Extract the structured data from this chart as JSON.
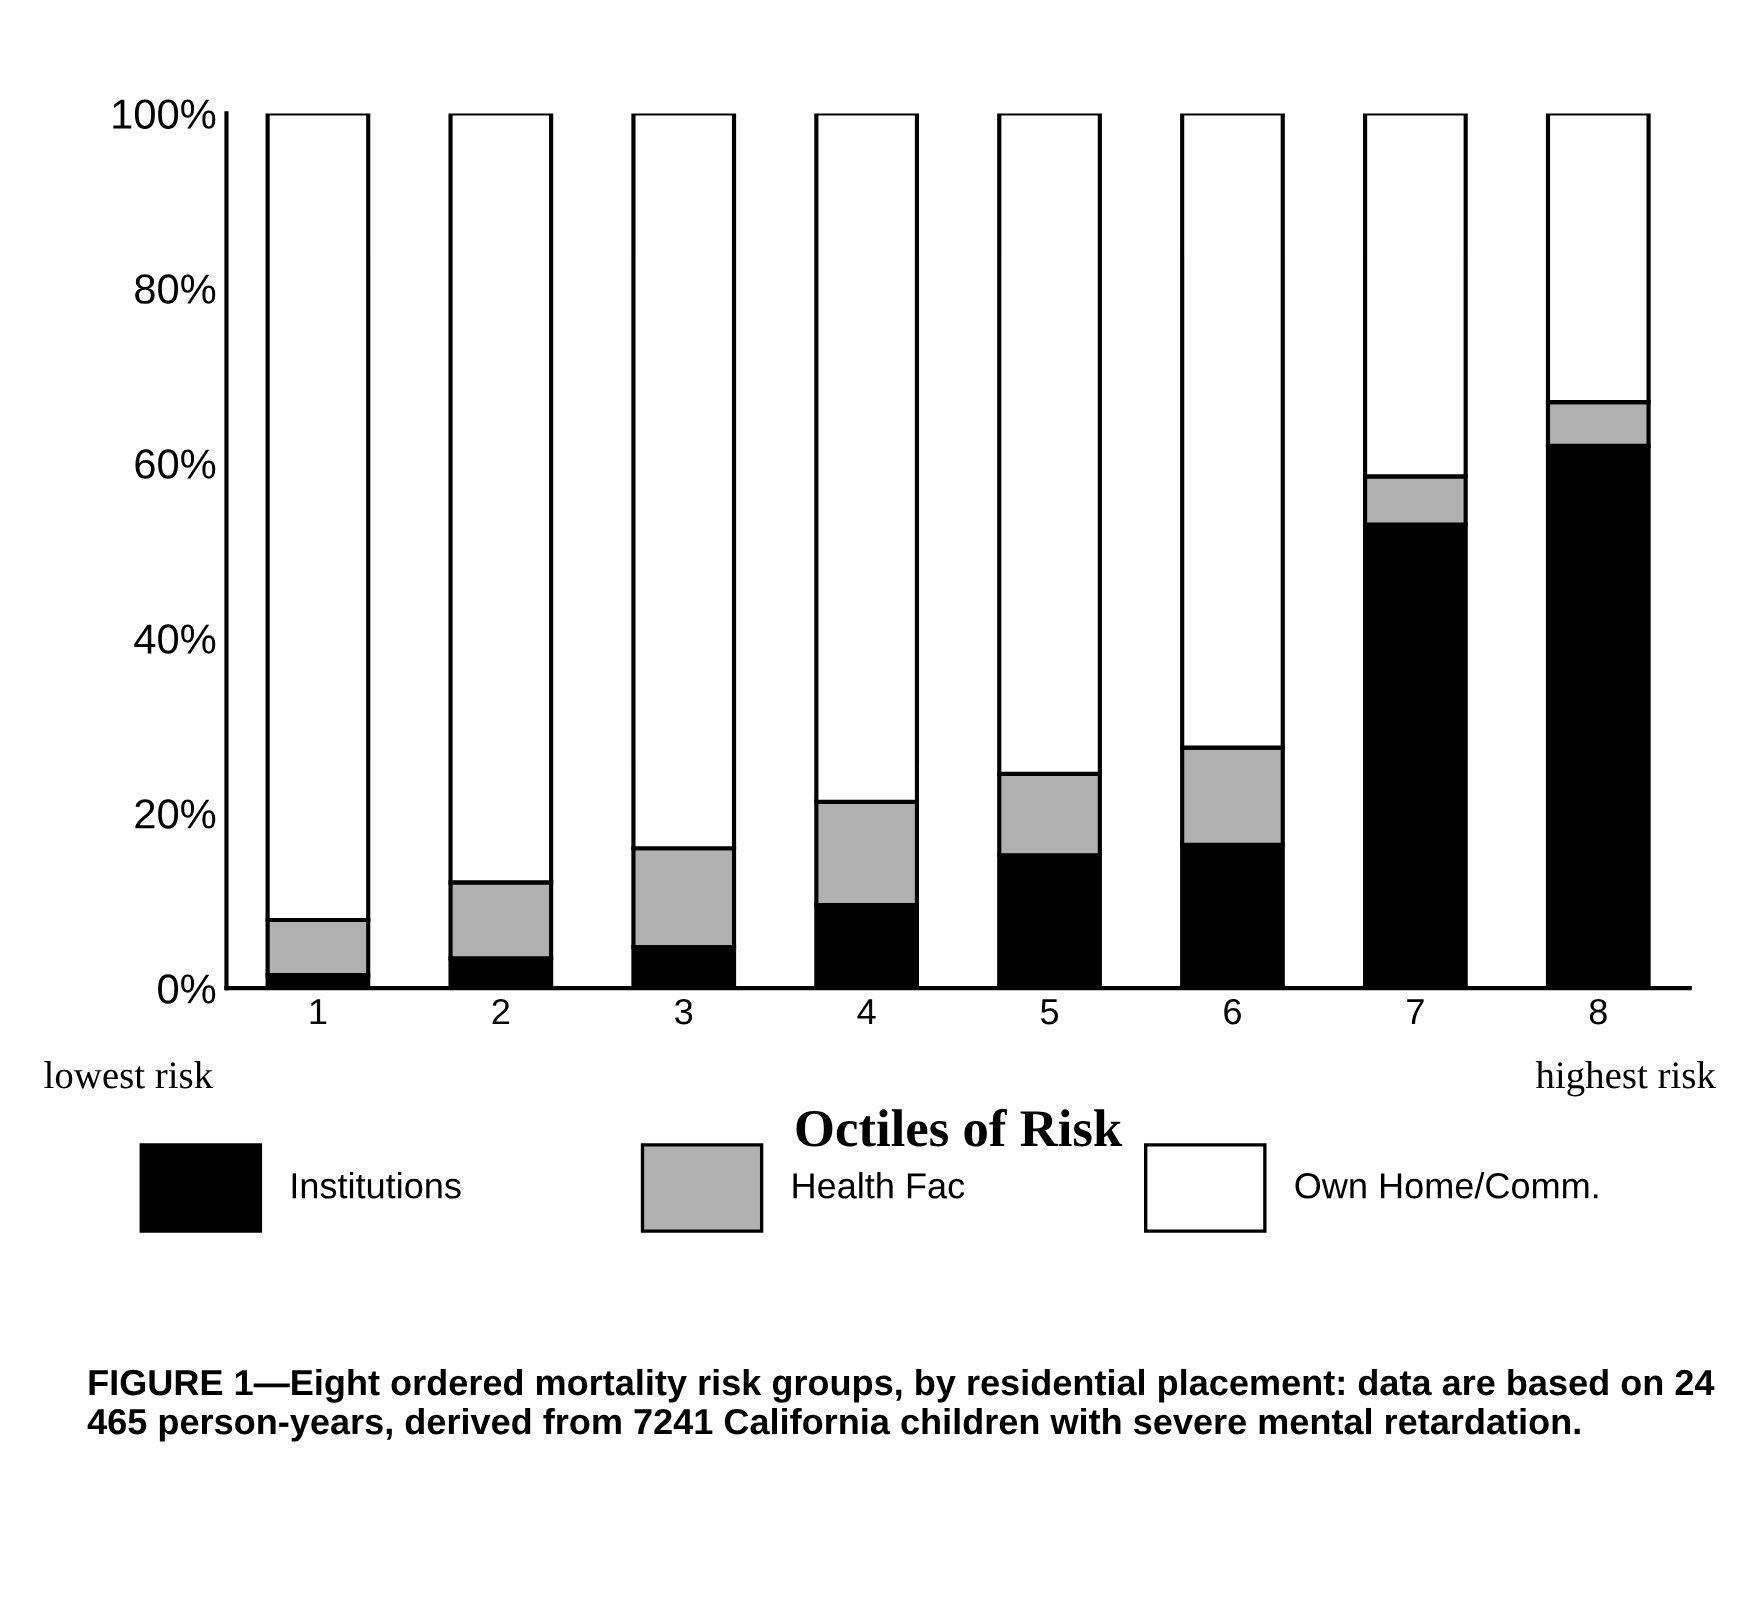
{
  "chart_data": {
    "type": "bar",
    "stacked": true,
    "xlabel": "Octiles of Risk",
    "categories": [
      "1",
      "2",
      "3",
      "4",
      "5",
      "6",
      "7",
      "8"
    ],
    "series": [
      {
        "name": "Institutions",
        "color": "#000000",
        "values": [
          1.5,
          3.4,
          4.7,
          9.5,
          15.2,
          16.4,
          53,
          62
        ]
      },
      {
        "name": "Health Fac",
        "color": "#b0b0b0",
        "values": [
          6.3,
          8.7,
          11.3,
          11.8,
          9.3,
          11.1,
          5.5,
          5
        ]
      },
      {
        "name": "Own Home/Comm.",
        "color": "#ffffff",
        "values": [
          92.2,
          87.9,
          84,
          78.7,
          75.5,
          72.5,
          41.5,
          33
        ]
      }
    ],
    "ylim": [
      0,
      100
    ],
    "yticks": [
      {
        "value": 0,
        "label": "0%"
      },
      {
        "value": 20,
        "label": "20%"
      },
      {
        "value": 40,
        "label": "40%"
      },
      {
        "value": 60,
        "label": "60%"
      },
      {
        "value": 80,
        "label": "80%"
      },
      {
        "value": 100,
        "label": "100%"
      }
    ],
    "grid": false,
    "legend": "bottom",
    "annotations": [
      "lowest risk",
      "highest risk",
      "FIGURE 1—Eight ordered mortality risk groups, by residential placement: data are based on 24 465 person-years, derived from 7241 California children with severe mental retardation."
    ]
  }
}
